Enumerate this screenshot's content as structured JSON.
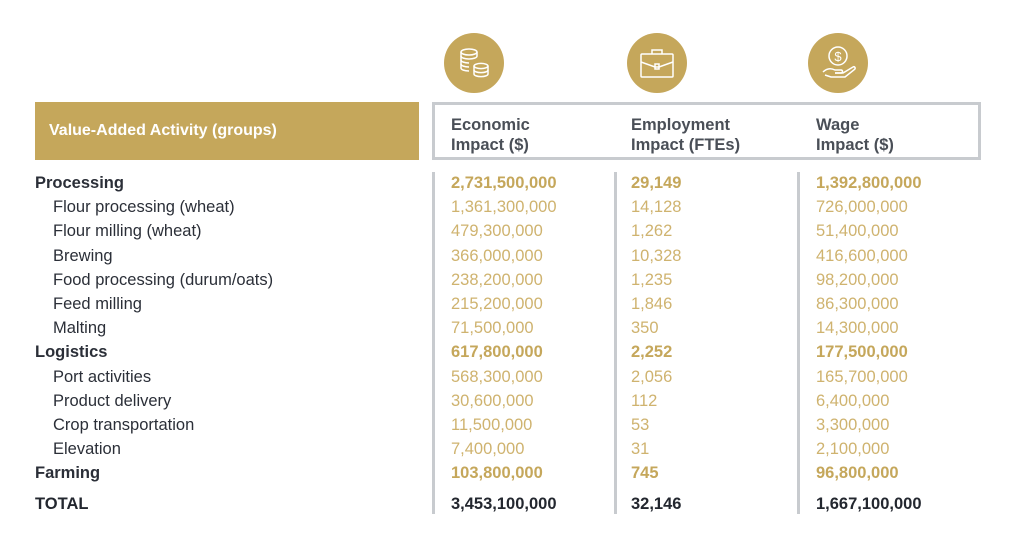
{
  "header": {
    "activity_label": "Value-Added Activity (groups)",
    "columns": [
      {
        "icon": "coins-icon",
        "line1": "Economic",
        "line2": "Impact ($)"
      },
      {
        "icon": "briefcase-icon",
        "line1": "Employment",
        "line2": "Impact (FTEs)"
      },
      {
        "icon": "hand-dollar-icon",
        "line1": "Wage",
        "line2": "Impact ($)"
      }
    ]
  },
  "colors": {
    "gold": "#c5a75b",
    "light_gold": "#cfb36f",
    "dark": "#23272f",
    "gray_rule": "#c8cbcf"
  },
  "rows": [
    {
      "label": "Processing",
      "type": "group",
      "economic": "2,731,500,000",
      "employment": "29,149",
      "wage": "1,392,800,000"
    },
    {
      "label": "Flour processing (wheat)",
      "type": "sub",
      "economic": "1,361,300,000",
      "employment": "14,128",
      "wage": "726,000,000"
    },
    {
      "label": "Flour milling (wheat)",
      "type": "sub",
      "economic": "479,300,000",
      "employment": "1,262",
      "wage": "51,400,000"
    },
    {
      "label": "Brewing",
      "type": "sub",
      "economic": "366,000,000",
      "employment": "10,328",
      "wage": "416,600,000"
    },
    {
      "label": "Food processing (durum/oats)",
      "type": "sub",
      "economic": "238,200,000",
      "employment": "1,235",
      "wage": "98,200,000"
    },
    {
      "label": "Feed milling",
      "type": "sub",
      "economic": "215,200,000",
      "employment": "1,846",
      "wage": "86,300,000"
    },
    {
      "label": "Malting",
      "type": "sub",
      "economic": "71,500,000",
      "employment": "350",
      "wage": "14,300,000"
    },
    {
      "label": "Logistics",
      "type": "group",
      "economic": "617,800,000",
      "employment": "2,252",
      "wage": "177,500,000"
    },
    {
      "label": "Port activities",
      "type": "sub",
      "economic": "568,300,000",
      "employment": "2,056",
      "wage": "165,700,000"
    },
    {
      "label": "Product delivery",
      "type": "sub",
      "economic": "30,600,000",
      "employment": "112",
      "wage": "6,400,000"
    },
    {
      "label": "Crop transportation",
      "type": "sub",
      "economic": "11,500,000",
      "employment": "53",
      "wage": "3,300,000"
    },
    {
      "label": "Elevation",
      "type": "sub",
      "economic": "7,400,000",
      "employment": "31",
      "wage": "2,100,000"
    },
    {
      "label": "Farming",
      "type": "group",
      "economic": "103,800,000",
      "employment": "745",
      "wage": "96,800,000"
    },
    {
      "label": "TOTAL",
      "type": "total",
      "economic": "3,453,100,000",
      "employment": "32,146",
      "wage": "1,667,100,000"
    }
  ]
}
